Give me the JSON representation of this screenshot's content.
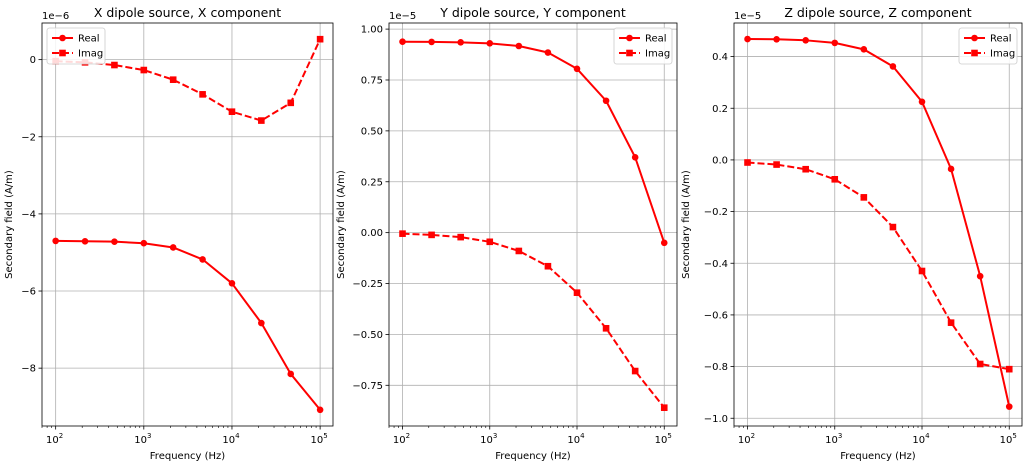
{
  "chart_data": [
    {
      "type": "line",
      "title": "X dipole source, X component",
      "xlabel": "Frequency (Hz)",
      "ylabel": "Secondary field (A/m)",
      "xscale": "log",
      "xlim": [
        70,
        140000
      ],
      "ylim": [
        -9.5,
        0.95
      ],
      "y_offset_label": "1e−6",
      "x_ticks": [
        {
          "value": 100,
          "base": "10",
          "exp": "2"
        },
        {
          "value": 1000,
          "base": "10",
          "exp": "3"
        },
        {
          "value": 10000,
          "base": "10",
          "exp": "4"
        },
        {
          "value": 100000,
          "base": "10",
          "exp": "5"
        }
      ],
      "y_ticks": [
        {
          "value": 0,
          "label": "0"
        },
        {
          "value": -2,
          "label": "−2"
        },
        {
          "value": -4,
          "label": "−4"
        },
        {
          "value": -6,
          "label": "−6"
        },
        {
          "value": -8,
          "label": "−8"
        }
      ],
      "grid": true,
      "legend_position": "top-left",
      "x": [
        100,
        215.4,
        464.2,
        1000,
        2154,
        4642,
        10000,
        21540,
        46420,
        100000
      ],
      "series": [
        {
          "name": "Real",
          "style": "solid",
          "marker": "circle",
          "color": "#ff0000",
          "values": [
            -4.7,
            -4.71,
            -4.72,
            -4.76,
            -4.87,
            -5.18,
            -5.8,
            -6.83,
            -8.15,
            -9.08
          ]
        },
        {
          "name": "Imag",
          "style": "dashed",
          "marker": "square",
          "color": "#ff0000",
          "values": [
            -0.04,
            -0.07,
            -0.14,
            -0.27,
            -0.52,
            -0.9,
            -1.35,
            -1.58,
            -1.12,
            0.53
          ]
        }
      ]
    },
    {
      "type": "line",
      "title": "Y dipole source, Y component",
      "xlabel": "Frequency (Hz)",
      "ylabel": "Secondary field (A/m)",
      "xscale": "log",
      "xlim": [
        70,
        140000
      ],
      "ylim": [
        -0.95,
        1.03
      ],
      "y_offset_label": "1e−5",
      "x_ticks": [
        {
          "value": 100,
          "base": "10",
          "exp": "2"
        },
        {
          "value": 1000,
          "base": "10",
          "exp": "3"
        },
        {
          "value": 10000,
          "base": "10",
          "exp": "4"
        },
        {
          "value": 100000,
          "base": "10",
          "exp": "5"
        }
      ],
      "y_ticks": [
        {
          "value": 1.0,
          "label": "1.00"
        },
        {
          "value": 0.75,
          "label": "0.75"
        },
        {
          "value": 0.5,
          "label": "0.50"
        },
        {
          "value": 0.25,
          "label": "0.25"
        },
        {
          "value": 0,
          "label": "0.00"
        },
        {
          "value": -0.25,
          "label": "−0.25"
        },
        {
          "value": -0.5,
          "label": "−0.50"
        },
        {
          "value": -0.75,
          "label": "−0.75"
        }
      ],
      "grid": true,
      "legend_position": "top-right",
      "x": [
        100,
        215.4,
        464.2,
        1000,
        2154,
        4642,
        10000,
        21540,
        46420,
        100000
      ],
      "series": [
        {
          "name": "Real",
          "style": "solid",
          "marker": "circle",
          "color": "#ff0000",
          "values": [
            0.938,
            0.937,
            0.935,
            0.93,
            0.917,
            0.885,
            0.805,
            0.648,
            0.37,
            -0.05
          ]
        },
        {
          "name": "Imag",
          "style": "dashed",
          "marker": "square",
          "color": "#ff0000",
          "values": [
            -0.005,
            -0.011,
            -0.022,
            -0.045,
            -0.09,
            -0.165,
            -0.295,
            -0.47,
            -0.68,
            -0.86
          ]
        }
      ]
    },
    {
      "type": "line",
      "title": "Z dipole source, Z component",
      "xlabel": "Frequency (Hz)",
      "ylabel": "Secondary field (A/m)",
      "xscale": "log",
      "xlim": [
        70,
        140000
      ],
      "ylim": [
        -1.03,
        0.53
      ],
      "y_offset_label": "1e−5",
      "x_ticks": [
        {
          "value": 100,
          "base": "10",
          "exp": "2"
        },
        {
          "value": 1000,
          "base": "10",
          "exp": "3"
        },
        {
          "value": 10000,
          "base": "10",
          "exp": "4"
        },
        {
          "value": 100000,
          "base": "10",
          "exp": "5"
        }
      ],
      "y_ticks": [
        {
          "value": 0.4,
          "label": "0.4"
        },
        {
          "value": 0.2,
          "label": "0.2"
        },
        {
          "value": 0,
          "label": "0.0"
        },
        {
          "value": -0.2,
          "label": "−0.2"
        },
        {
          "value": -0.4,
          "label": "−0.4"
        },
        {
          "value": -0.6,
          "label": "−0.6"
        },
        {
          "value": -0.8,
          "label": "−0.8"
        },
        {
          "value": -1.0,
          "label": "−1.0"
        }
      ],
      "grid": true,
      "legend_position": "top-right",
      "x": [
        100,
        215.4,
        464.2,
        1000,
        2154,
        4642,
        10000,
        21540,
        46420,
        100000
      ],
      "series": [
        {
          "name": "Real",
          "style": "solid",
          "marker": "circle",
          "color": "#ff0000",
          "values": [
            0.468,
            0.467,
            0.463,
            0.453,
            0.428,
            0.362,
            0.225,
            -0.035,
            -0.45,
            -0.955
          ]
        },
        {
          "name": "Imag",
          "style": "dashed",
          "marker": "square",
          "color": "#ff0000",
          "values": [
            -0.01,
            -0.018,
            -0.036,
            -0.075,
            -0.145,
            -0.26,
            -0.43,
            -0.63,
            -0.79,
            -0.81
          ]
        }
      ]
    }
  ]
}
